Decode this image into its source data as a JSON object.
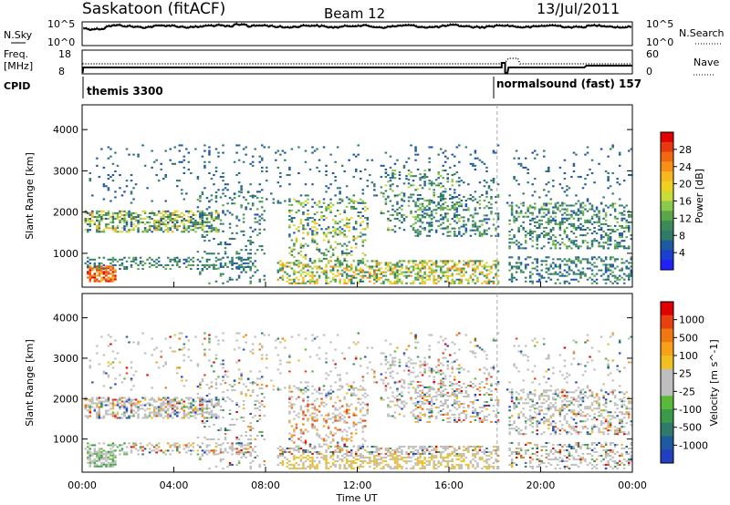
{
  "header": {
    "station": "Saskatoon (fitACF)",
    "beam": "Beam 12",
    "date": "13/Jul/2011"
  },
  "top_panels": {
    "nsky_label": "N.Sky",
    "nsky_max": "10^5",
    "nsky_min": "10^0",
    "nsearch_label": "N.Search",
    "nsearch_max": "10^5",
    "nsearch_min": "10^0",
    "freq_label": "Freq.",
    "freq_unit": "[MHz]",
    "freq_max": "18",
    "freq_min": "8",
    "nave_label": "Nave",
    "nave_max": "60",
    "nave_min": "0",
    "cpid_label": "CPID",
    "cpid_modes": [
      {
        "name": "themis 3300",
        "start_hour": 0
      },
      {
        "name": "normalsound (fast) 157",
        "start_hour": 18.45
      }
    ]
  },
  "power_panel": {
    "ylabel": "Slant Range [km]",
    "cbar_label": "Power [dB]",
    "cbar_ticks": [
      "28",
      "24",
      "20",
      "16",
      "12",
      "8",
      "4"
    ],
    "cbar_colors": [
      "#2020ff",
      "#1a40d0",
      "#1e5aa0",
      "#2f7a68",
      "#3a8a5a",
      "#5aa64a",
      "#8cc84a",
      "#c8dc3a",
      "#f0d020",
      "#f8b820",
      "#f89018",
      "#f06810",
      "#e83810",
      "#e00000"
    ]
  },
  "velocity_panel": {
    "ylabel": "Slant Range [km]",
    "cbar_label": "Velocity [m s^-1]",
    "cbar_ticks": [
      "1000",
      "500",
      "100",
      "25",
      "-25",
      "-100",
      "-500",
      "-1000"
    ],
    "cbar_colors": [
      "#2040c0",
      "#1e5aa0",
      "#2f7a68",
      "#3a9a4a",
      "#5ab83a",
      "#bebebe",
      "#bebebe",
      "#f0c020",
      "#f8a018",
      "#f07810",
      "#e84010",
      "#e00000"
    ]
  },
  "xaxis": {
    "label": "Time UT",
    "ticks": [
      "00:00",
      "04:00",
      "08:00",
      "12:00",
      "16:00",
      "20:00",
      "00:00"
    ]
  },
  "chart_data": {
    "type": "heatmap",
    "x_range_hours": [
      0,
      24
    ],
    "y_range_km": [
      180,
      4600
    ],
    "y_ticks": [
      1000,
      2000,
      3000,
      4000
    ],
    "mode_change_hour": 18.45,
    "nsky_range": [
      1,
      100000
    ],
    "freq_range_mhz": [
      8,
      18
    ],
    "nave_range": [
      0,
      60
    ]
  }
}
